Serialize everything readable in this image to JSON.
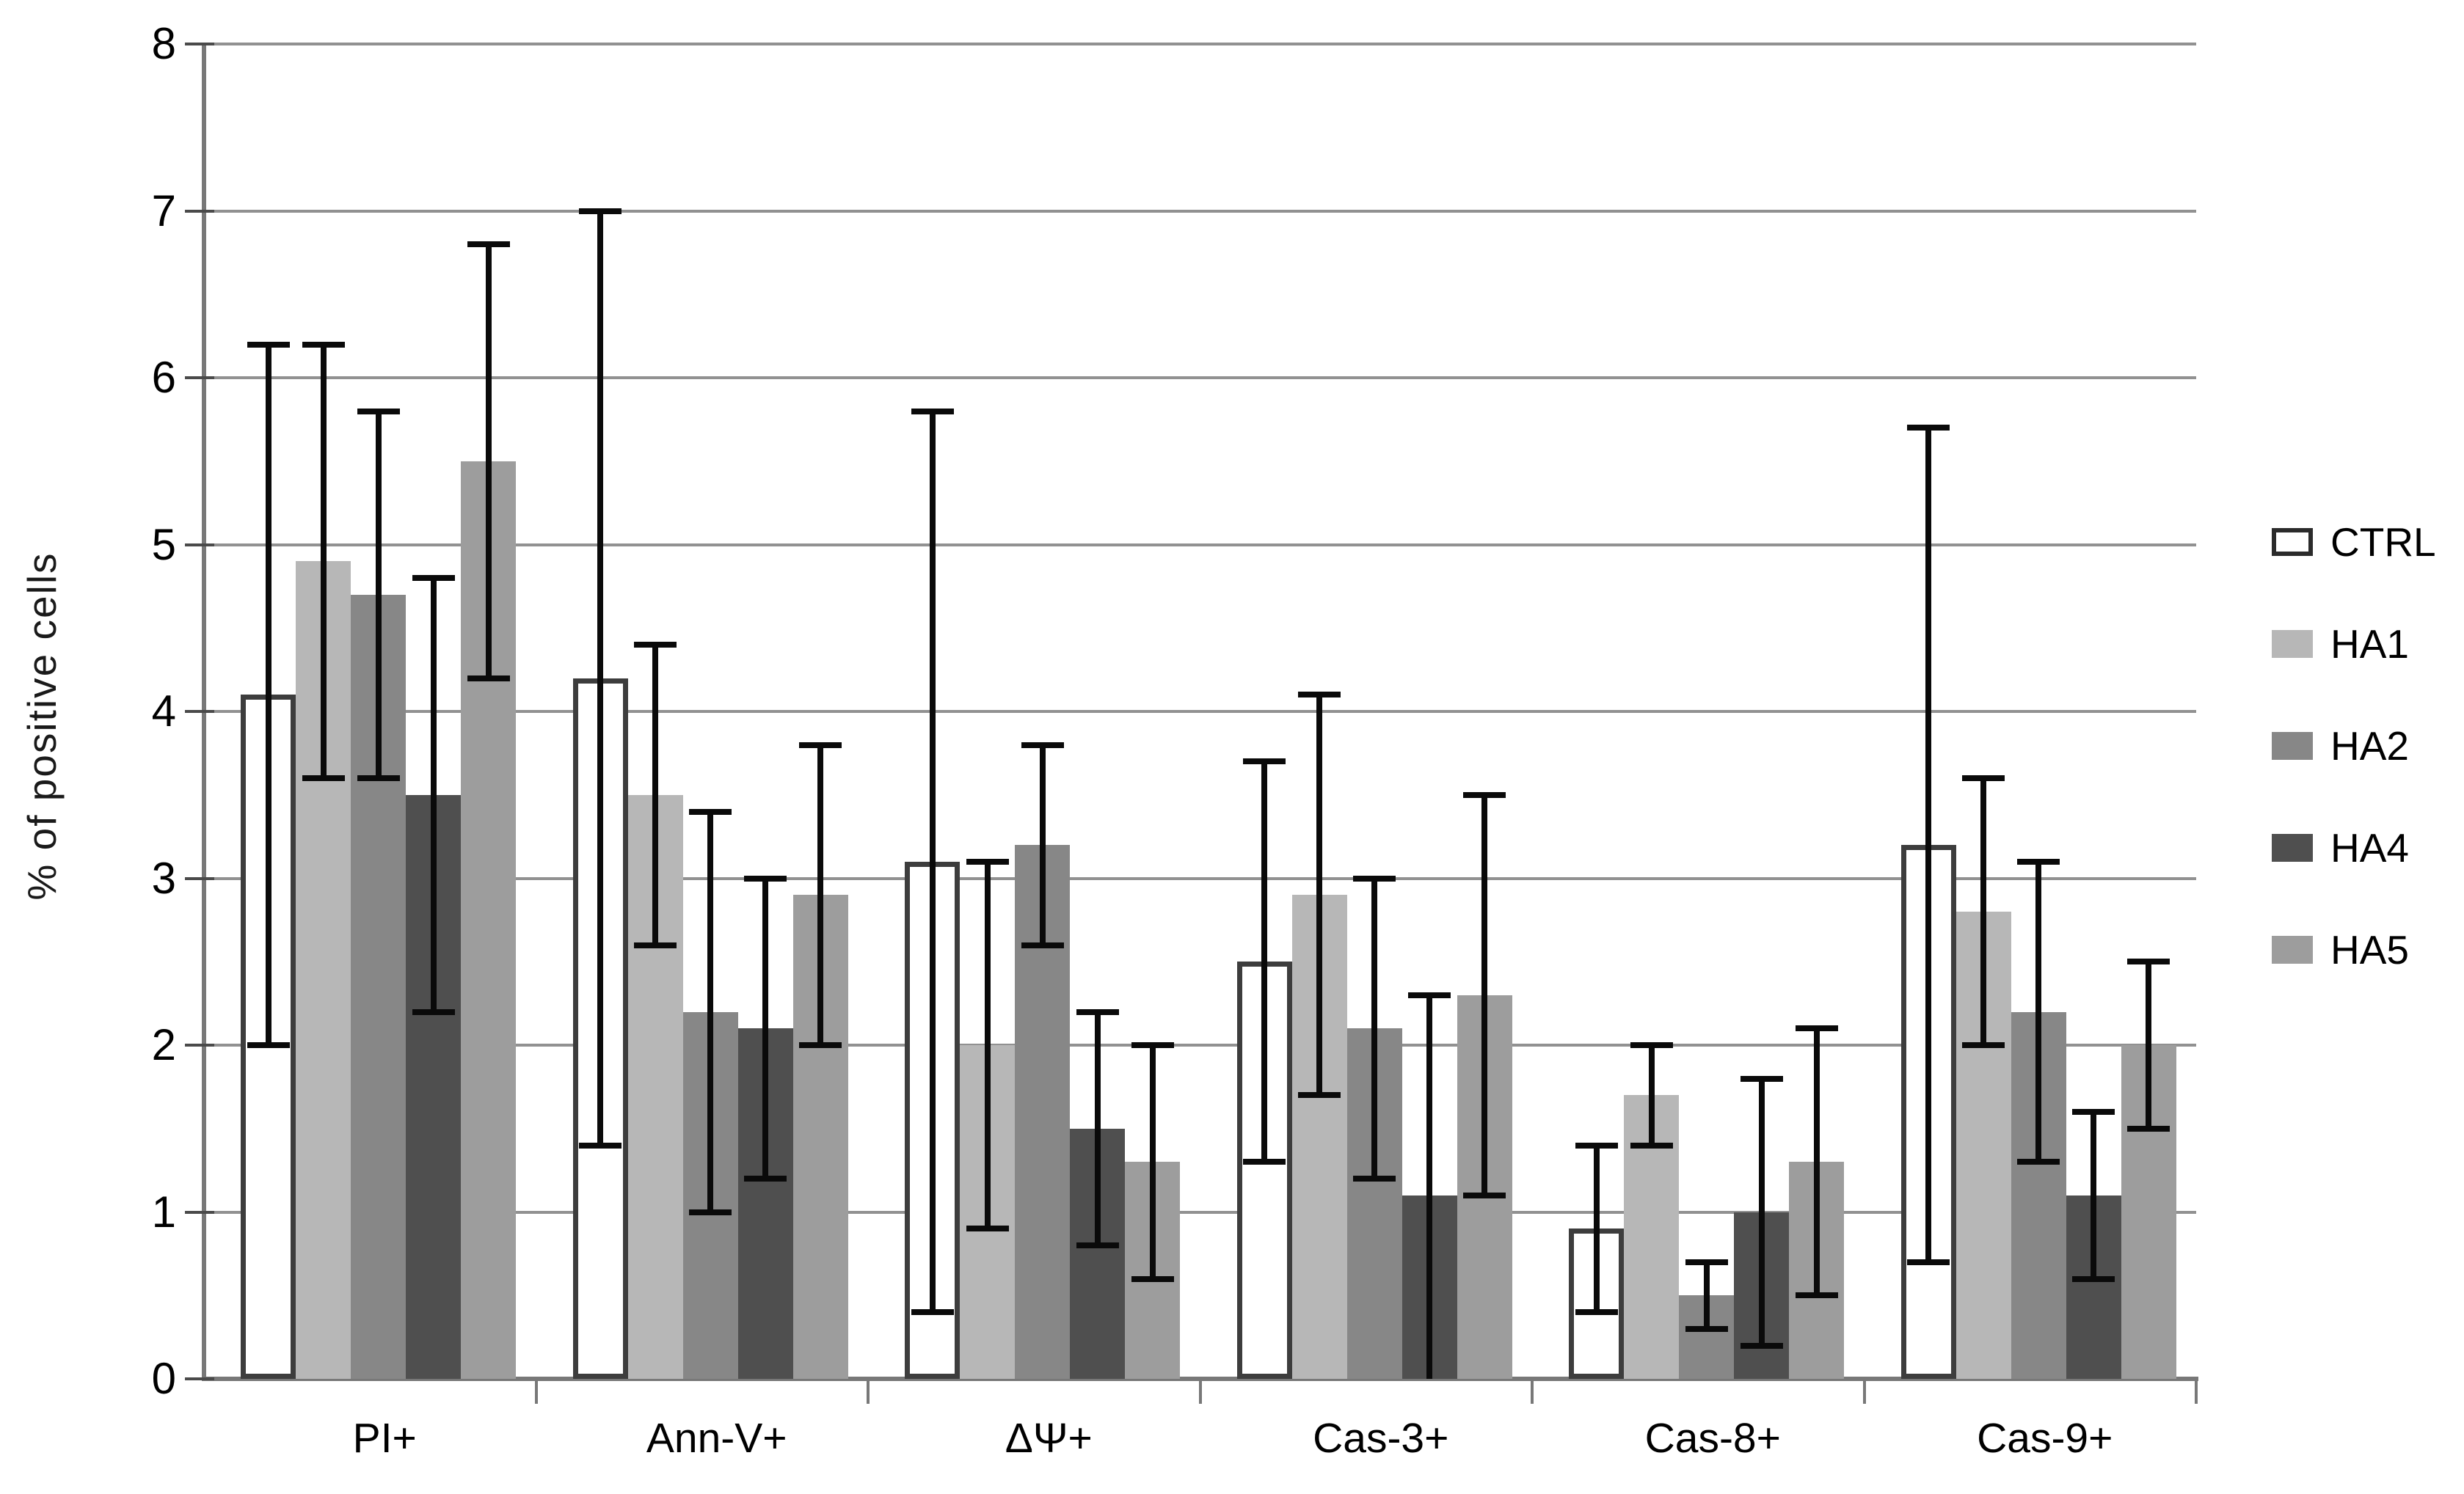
{
  "chart_data": {
    "type": "bar",
    "title": "",
    "xlabel": "",
    "ylabel": "% of positive cells",
    "ylim": [
      0,
      8
    ],
    "yticks": [
      0,
      1,
      2,
      3,
      4,
      5,
      6,
      7,
      8
    ],
    "grid": true,
    "legend_position": "right",
    "error_bars": true,
    "categories": [
      "PI+",
      "Ann-V+",
      "ΔΨ+",
      "Cas-3+",
      "Cas-8+",
      "Cas-9+"
    ],
    "series": [
      {
        "name": "CTRL",
        "fill": "#ffffff",
        "border": "#3d3d3d",
        "values": [
          4.1,
          4.2,
          3.1,
          2.5,
          0.9,
          3.2
        ],
        "err_low": [
          2.0,
          1.4,
          0.4,
          1.3,
          0.4,
          0.7
        ],
        "err_high": [
          6.2,
          7.0,
          5.8,
          3.7,
          1.4,
          5.7
        ]
      },
      {
        "name": "HA1",
        "fill": "#b7b7b7",
        "values": [
          4.9,
          3.5,
          2.0,
          2.9,
          1.7,
          2.8
        ],
        "err_low": [
          3.6,
          2.6,
          0.9,
          1.7,
          1.4,
          2.0
        ],
        "err_high": [
          6.2,
          4.4,
          3.1,
          4.1,
          2.0,
          3.6
        ]
      },
      {
        "name": "HA2",
        "fill": "#878787",
        "values": [
          4.7,
          2.2,
          3.2,
          2.1,
          0.5,
          2.2
        ],
        "err_low": [
          3.6,
          1.0,
          2.6,
          1.2,
          0.3,
          1.3
        ],
        "err_high": [
          5.8,
          3.4,
          3.8,
          3.0,
          0.7,
          3.1
        ]
      },
      {
        "name": "HA4",
        "fill": "#4f4f4f",
        "values": [
          3.5,
          2.1,
          1.5,
          1.1,
          1.0,
          1.1
        ],
        "err_low": [
          2.2,
          1.2,
          0.8,
          0.0,
          0.2,
          0.6
        ],
        "err_high": [
          4.8,
          3.0,
          2.2,
          2.3,
          1.8,
          1.6
        ]
      },
      {
        "name": "HA5",
        "fill": "#9d9d9d",
        "values": [
          5.5,
          2.9,
          1.3,
          2.3,
          1.3,
          2.0
        ],
        "err_low": [
          4.2,
          2.0,
          0.6,
          1.1,
          0.5,
          1.5
        ],
        "err_high": [
          6.8,
          3.8,
          2.0,
          3.5,
          2.1,
          2.5
        ]
      }
    ],
    "colors": {
      "gridline": "#919191",
      "axis": "#787878",
      "error_bar": "#0a0a0a",
      "text": "#000000"
    }
  }
}
